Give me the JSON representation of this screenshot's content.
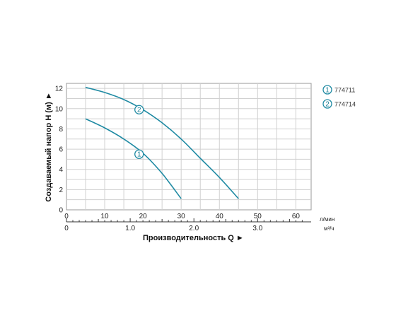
{
  "chart_data": {
    "type": "line",
    "ylabel": "Создаваемый напор H (м) ►",
    "xlabel": "Производительность Q ►",
    "y_ticks": [
      0,
      2,
      4,
      6,
      8,
      10,
      12
    ],
    "ylim": [
      0,
      12.5
    ],
    "x_lpm": {
      "unit": "л/мин",
      "ticks": [
        0,
        10,
        20,
        30,
        40,
        50,
        60
      ],
      "range": [
        0,
        64
      ]
    },
    "x_m3h": {
      "unit": "м³/ч",
      "ticks": [
        "0",
        "1.0",
        "2.0",
        "3.0"
      ],
      "tick_values": [
        0,
        1,
        2,
        3
      ]
    },
    "grid": true,
    "legend_position": "right",
    "line_color": "#1f8aa3",
    "series": [
      {
        "name": "774711",
        "marker": "1",
        "marker_at": [
          19,
          5.5
        ],
        "points": [
          [
            5,
            9
          ],
          [
            10,
            8.1
          ],
          [
            15,
            7.0
          ],
          [
            20,
            5.6
          ],
          [
            25,
            3.6
          ],
          [
            30,
            1.1
          ]
        ]
      },
      {
        "name": "774714",
        "marker": "2",
        "marker_at": [
          19,
          9.9
        ],
        "points": [
          [
            5,
            12.1
          ],
          [
            10,
            11.6
          ],
          [
            15,
            10.9
          ],
          [
            20,
            9.9
          ],
          [
            25,
            8.6
          ],
          [
            30,
            7.0
          ],
          [
            35,
            5.1
          ],
          [
            40,
            3.2
          ],
          [
            45,
            1.1
          ]
        ]
      }
    ]
  }
}
